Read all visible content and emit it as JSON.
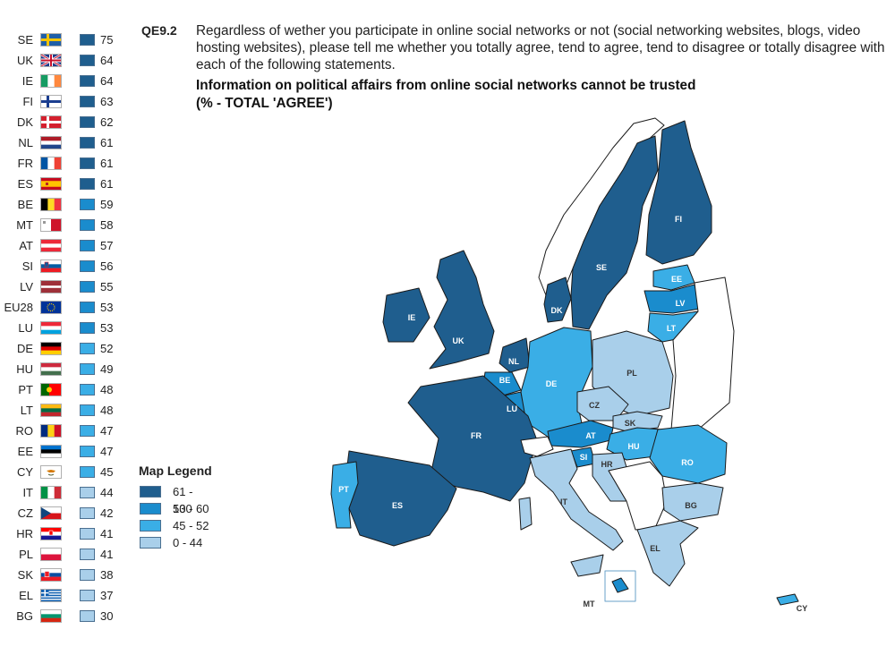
{
  "question": {
    "code": "QE9.2",
    "text": "Regardless of wether you participate in online social networks or not (social networking websites, blogs, video hosting websites), please tell me whether you totally agree, tend to agree, tend to disagree or totally disagree with each of the following statements.",
    "statement": "Information on political affairs from online social networks cannot be trusted",
    "measure": "(% - TOTAL 'AGREE')"
  },
  "colors": {
    "band_61_100": "#1f5e8e",
    "band_53_60": "#1a8ccd",
    "band_45_52": "#3aaee6",
    "band_0_44": "#a9cfea",
    "non_eu": "#ffffff",
    "border": "#1a1a1a"
  },
  "legend": {
    "title": "Map Legend",
    "items": [
      {
        "label": "61 - 100",
        "color": "#1f5e8e"
      },
      {
        "label": "53 - 60",
        "color": "#1a8ccd"
      },
      {
        "label": "45 - 52",
        "color": "#3aaee6"
      },
      {
        "label": "0 - 44",
        "color": "#a9cfea"
      }
    ]
  },
  "countries": [
    {
      "code": "SE",
      "value": "75",
      "flag": "se-flag"
    },
    {
      "code": "UK",
      "value": "64",
      "flag": "uk-flag"
    },
    {
      "code": "IE",
      "value": "64",
      "flag": "ie-flag"
    },
    {
      "code": "FI",
      "value": "63",
      "flag": "fi-flag"
    },
    {
      "code": "DK",
      "value": "62",
      "flag": "dk-flag"
    },
    {
      "code": "NL",
      "value": "61",
      "flag": "nl-flag"
    },
    {
      "code": "FR",
      "value": "61",
      "flag": "fr-flag"
    },
    {
      "code": "ES",
      "value": "61",
      "flag": "es-flag"
    },
    {
      "code": "BE",
      "value": "59",
      "flag": "be-flag"
    },
    {
      "code": "MT",
      "value": "58",
      "flag": "mt-flag"
    },
    {
      "code": "AT",
      "value": "57",
      "flag": "at-flag"
    },
    {
      "code": "SI",
      "value": "56",
      "flag": "si-flag"
    },
    {
      "code": "LV",
      "value": "55",
      "flag": "lv-flag"
    },
    {
      "code": "EU28",
      "value": "53",
      "flag": "eu-flag"
    },
    {
      "code": "LU",
      "value": "53",
      "flag": "lu-flag"
    },
    {
      "code": "DE",
      "value": "52",
      "flag": "de-flag"
    },
    {
      "code": "HU",
      "value": "49",
      "flag": "hu-flag"
    },
    {
      "code": "PT",
      "value": "48",
      "flag": "pt-flag"
    },
    {
      "code": "LT",
      "value": "48",
      "flag": "lt-flag"
    },
    {
      "code": "RO",
      "value": "47",
      "flag": "ro-flag"
    },
    {
      "code": "EE",
      "value": "47",
      "flag": "ee-flag"
    },
    {
      "code": "CY",
      "value": "45",
      "flag": "cy-flag"
    },
    {
      "code": "IT",
      "value": "44",
      "flag": "it-flag"
    },
    {
      "code": "CZ",
      "value": "42",
      "flag": "cz-flag"
    },
    {
      "code": "HR",
      "value": "41",
      "flag": "hr-flag"
    },
    {
      "code": "PL",
      "value": "41",
      "flag": "pl-flag"
    },
    {
      "code": "SK",
      "value": "38",
      "flag": "sk-flag"
    },
    {
      "code": "EL",
      "value": "37",
      "flag": "el-flag"
    },
    {
      "code": "BG",
      "value": "30",
      "flag": "bg-flag"
    }
  ],
  "map_labels": {
    "FI": "FI",
    "SE": "SE",
    "EE": "EE",
    "LV": "LV",
    "LT": "LT",
    "DK": "DK",
    "IE": "IE",
    "UK": "UK",
    "NL": "NL",
    "BE": "BE",
    "LU": "LU",
    "DE": "DE",
    "PL": "PL",
    "CZ": "CZ",
    "SK": "SK",
    "AT": "AT",
    "HU": "HU",
    "SI": "SI",
    "HR": "HR",
    "RO": "RO",
    "FR": "FR",
    "PT": "PT",
    "ES": "ES",
    "IT": "IT",
    "BG": "BG",
    "EL": "EL",
    "MT": "MT",
    "CY": "CY"
  }
}
